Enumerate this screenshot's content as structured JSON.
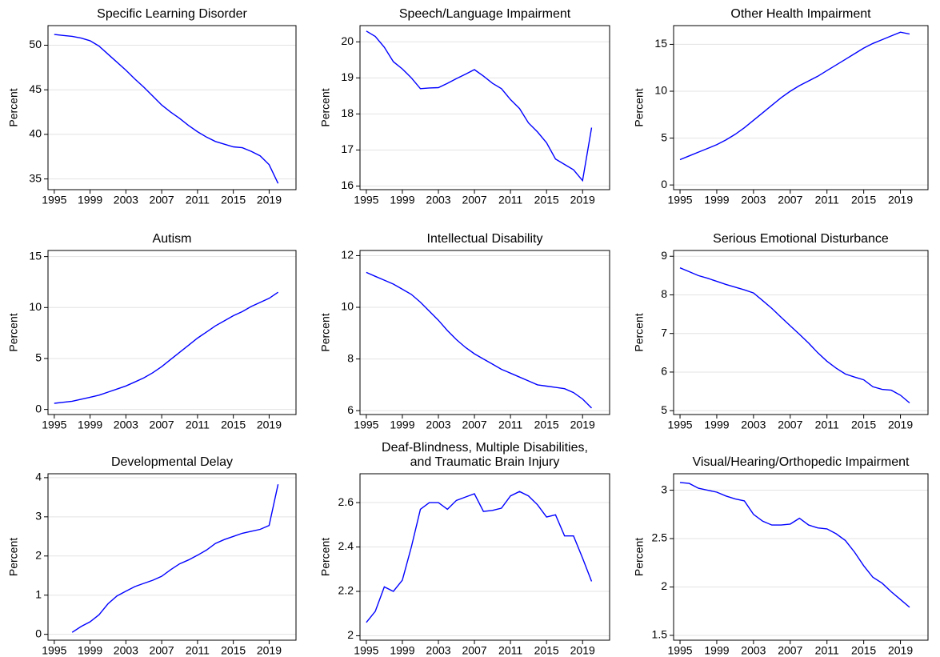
{
  "chart_data": [
    {
      "type": "line",
      "title": "Specific Learning Disorder",
      "ylabel": "Percent",
      "color": "#0000ff",
      "grid": true,
      "x": [
        1995,
        1996,
        1997,
        1998,
        1999,
        2000,
        2001,
        2002,
        2003,
        2004,
        2005,
        2006,
        2007,
        2008,
        2009,
        2010,
        2011,
        2012,
        2013,
        2014,
        2015,
        2016,
        2017,
        2018,
        2019,
        2020
      ],
      "values": [
        51.2,
        51.1,
        51.0,
        50.8,
        50.5,
        49.9,
        49.0,
        48.1,
        47.2,
        46.2,
        45.3,
        44.3,
        43.3,
        42.5,
        41.8,
        41.0,
        40.3,
        39.7,
        39.2,
        38.9,
        38.6,
        38.5,
        38.1,
        37.6,
        36.6,
        34.5
      ],
      "xlim": [
        1994.3,
        2022
      ],
      "xticks": [
        1995,
        1999,
        2003,
        2007,
        2011,
        2015,
        2019
      ],
      "ylim": [
        33.8,
        52.2
      ],
      "yticks": [
        35,
        40,
        45,
        50
      ]
    },
    {
      "type": "line",
      "title": "Speech/Language Impairment",
      "ylabel": "Percent",
      "color": "#0000ff",
      "grid": true,
      "x": [
        1995,
        1996,
        1997,
        1998,
        1999,
        2000,
        2001,
        2002,
        2003,
        2004,
        2005,
        2006,
        2007,
        2008,
        2009,
        2010,
        2011,
        2012,
        2013,
        2014,
        2015,
        2016,
        2017,
        2018,
        2019,
        2020
      ],
      "values": [
        20.3,
        20.15,
        19.85,
        19.45,
        19.25,
        19.0,
        18.7,
        18.72,
        18.73,
        18.85,
        18.98,
        19.1,
        19.23,
        19.05,
        18.85,
        18.7,
        18.4,
        18.15,
        17.75,
        17.5,
        17.2,
        16.75,
        16.6,
        16.45,
        16.15,
        17.62
      ],
      "xlim": [
        1994.3,
        2022
      ],
      "xticks": [
        1995,
        1999,
        2003,
        2007,
        2011,
        2015,
        2019
      ],
      "ylim": [
        15.9,
        20.45
      ],
      "yticks": [
        16,
        17,
        18,
        19,
        20
      ]
    },
    {
      "type": "line",
      "title": "Other Health Impairment",
      "ylabel": "Percent",
      "color": "#0000ff",
      "grid": true,
      "x": [
        1995,
        1996,
        1997,
        1998,
        1999,
        2000,
        2001,
        2002,
        2003,
        2004,
        2005,
        2006,
        2007,
        2008,
        2009,
        2010,
        2011,
        2012,
        2013,
        2014,
        2015,
        2016,
        2017,
        2018,
        2019,
        2020
      ],
      "values": [
        2.7,
        3.1,
        3.5,
        3.9,
        4.3,
        4.8,
        5.4,
        6.1,
        6.9,
        7.7,
        8.5,
        9.3,
        10.0,
        10.6,
        11.1,
        11.6,
        12.2,
        12.8,
        13.4,
        14.0,
        14.6,
        15.1,
        15.5,
        15.9,
        16.3,
        16.1
      ],
      "xlim": [
        1994.3,
        2022
      ],
      "xticks": [
        1995,
        1999,
        2003,
        2007,
        2011,
        2015,
        2019
      ],
      "ylim": [
        -0.5,
        17
      ],
      "yticks": [
        0,
        5,
        10,
        15
      ]
    },
    {
      "type": "line",
      "title": "Autism",
      "ylabel": "Percent",
      "color": "#0000ff",
      "grid": true,
      "x": [
        1995,
        1996,
        1997,
        1998,
        1999,
        2000,
        2001,
        2002,
        2003,
        2004,
        2005,
        2006,
        2007,
        2008,
        2009,
        2010,
        2011,
        2012,
        2013,
        2014,
        2015,
        2016,
        2017,
        2018,
        2019,
        2020
      ],
      "values": [
        0.6,
        0.7,
        0.8,
        1.0,
        1.2,
        1.4,
        1.7,
        2.0,
        2.3,
        2.7,
        3.1,
        3.6,
        4.2,
        4.9,
        5.6,
        6.3,
        7.0,
        7.6,
        8.2,
        8.7,
        9.2,
        9.6,
        10.1,
        10.5,
        10.9,
        11.5
      ],
      "xlim": [
        1994.3,
        2022
      ],
      "xticks": [
        1995,
        1999,
        2003,
        2007,
        2011,
        2015,
        2019
      ],
      "ylim": [
        -0.5,
        15.6
      ],
      "yticks": [
        0,
        5,
        10,
        15
      ]
    },
    {
      "type": "line",
      "title": "Intellectual Disability",
      "ylabel": "Percent",
      "color": "#0000ff",
      "grid": true,
      "x": [
        1995,
        1996,
        1997,
        1998,
        1999,
        2000,
        2001,
        2002,
        2003,
        2004,
        2005,
        2006,
        2007,
        2008,
        2009,
        2010,
        2011,
        2012,
        2013,
        2014,
        2015,
        2016,
        2017,
        2018,
        2019,
        2020
      ],
      "values": [
        11.35,
        11.2,
        11.05,
        10.9,
        10.7,
        10.5,
        10.2,
        9.85,
        9.5,
        9.1,
        8.75,
        8.45,
        8.2,
        8.0,
        7.8,
        7.6,
        7.45,
        7.3,
        7.15,
        7.0,
        6.95,
        6.9,
        6.85,
        6.7,
        6.45,
        6.1
      ],
      "xlim": [
        1994.3,
        2022
      ],
      "xticks": [
        1995,
        1999,
        2003,
        2007,
        2011,
        2015,
        2019
      ],
      "ylim": [
        5.85,
        12.2
      ],
      "yticks": [
        6,
        8,
        10,
        12
      ]
    },
    {
      "type": "line",
      "title": "Serious Emotional Disturbance",
      "ylabel": "Percent",
      "color": "#0000ff",
      "grid": true,
      "x": [
        1995,
        1996,
        1997,
        1998,
        1999,
        2000,
        2001,
        2002,
        2003,
        2004,
        2005,
        2006,
        2007,
        2008,
        2009,
        2010,
        2011,
        2012,
        2013,
        2014,
        2015,
        2016,
        2017,
        2018,
        2019,
        2020
      ],
      "values": [
        8.7,
        8.6,
        8.5,
        8.43,
        8.35,
        8.27,
        8.2,
        8.13,
        8.05,
        7.85,
        7.65,
        7.42,
        7.2,
        6.98,
        6.75,
        6.5,
        6.28,
        6.1,
        5.95,
        5.87,
        5.8,
        5.62,
        5.55,
        5.53,
        5.4,
        5.2
      ],
      "xlim": [
        1994.3,
        2022
      ],
      "xticks": [
        1995,
        1999,
        2003,
        2007,
        2011,
        2015,
        2019
      ],
      "ylim": [
        4.9,
        9.15
      ],
      "yticks": [
        5,
        6,
        7,
        8,
        9
      ]
    },
    {
      "type": "line",
      "title": "Developmental Delay",
      "ylabel": "Percent",
      "color": "#0000ff",
      "grid": true,
      "x": [
        1995,
        1996,
        1997,
        1998,
        1999,
        2000,
        2001,
        2002,
        2003,
        2004,
        2005,
        2006,
        2007,
        2008,
        2009,
        2010,
        2011,
        2012,
        2013,
        2014,
        2015,
        2016,
        2017,
        2018,
        2019,
        2020
      ],
      "values": [
        null,
        null,
        0.05,
        0.2,
        0.32,
        0.5,
        0.78,
        0.98,
        1.1,
        1.22,
        1.3,
        1.38,
        1.48,
        1.65,
        1.8,
        1.9,
        2.02,
        2.15,
        2.32,
        2.42,
        2.5,
        2.58,
        2.63,
        2.68,
        2.78,
        3.83
      ],
      "xlim": [
        1994.3,
        2022
      ],
      "xticks": [
        1995,
        1999,
        2003,
        2007,
        2011,
        2015,
        2019
      ],
      "ylim": [
        -0.15,
        4.1
      ],
      "yticks": [
        0,
        1,
        2,
        3,
        4
      ]
    },
    {
      "type": "line",
      "title": [
        "Deaf-Blindness, Multiple Disabilities,",
        "and Traumatic Brain Injury"
      ],
      "ylabel": "Percent",
      "color": "#0000ff",
      "grid": true,
      "x": [
        1995,
        1996,
        1997,
        1998,
        1999,
        2000,
        2001,
        2002,
        2003,
        2004,
        2005,
        2006,
        2007,
        2008,
        2009,
        2010,
        2011,
        2012,
        2013,
        2014,
        2015,
        2016,
        2017,
        2018,
        2019,
        2020
      ],
      "values": [
        2.06,
        2.11,
        2.22,
        2.2,
        2.25,
        2.4,
        2.57,
        2.6,
        2.6,
        2.57,
        2.61,
        2.625,
        2.64,
        2.56,
        2.565,
        2.575,
        2.63,
        2.65,
        2.63,
        2.59,
        2.535,
        2.545,
        2.45,
        2.45,
        2.35,
        2.245
      ],
      "xlim": [
        1994.3,
        2022
      ],
      "xticks": [
        1995,
        1999,
        2003,
        2007,
        2011,
        2015,
        2019
      ],
      "ylim": [
        1.98,
        2.73
      ],
      "yticks": [
        2,
        2.2,
        2.4,
        2.6
      ]
    },
    {
      "type": "line",
      "title": "Visual/Hearing/Orthopedic Impairment",
      "ylabel": "Percent",
      "color": "#0000ff",
      "grid": true,
      "x": [
        1995,
        1996,
        1997,
        1998,
        1999,
        2000,
        2001,
        2002,
        2003,
        2004,
        2005,
        2006,
        2007,
        2008,
        2009,
        2010,
        2011,
        2012,
        2013,
        2014,
        2015,
        2016,
        2017,
        2018,
        2019,
        2020
      ],
      "values": [
        3.08,
        3.07,
        3.02,
        3.0,
        2.98,
        2.94,
        2.91,
        2.89,
        2.75,
        2.68,
        2.64,
        2.64,
        2.65,
        2.71,
        2.64,
        2.61,
        2.6,
        2.55,
        2.48,
        2.36,
        2.22,
        2.1,
        2.04,
        1.95,
        1.87,
        1.79
      ],
      "xlim": [
        1994.3,
        2022
      ],
      "xticks": [
        1995,
        1999,
        2003,
        2007,
        2011,
        2015,
        2019
      ],
      "ylim": [
        1.45,
        3.17
      ],
      "yticks": [
        1.5,
        2,
        2.5,
        3
      ]
    }
  ]
}
